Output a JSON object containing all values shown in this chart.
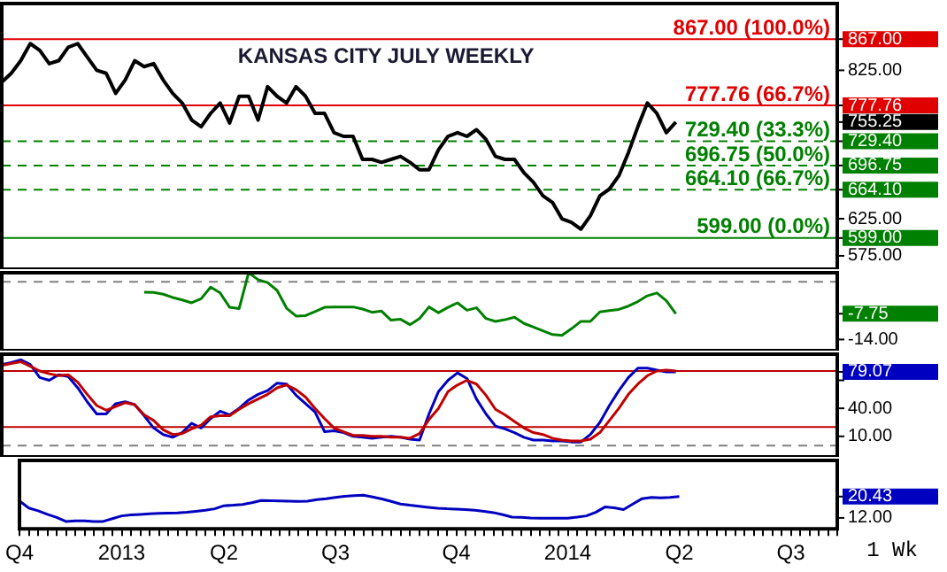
{
  "chart_data": [
    {
      "type": "line",
      "title": "KANSAS CITY JULY WEEKLY",
      "tick_labels": "y",
      "categories": [
        null,
        null,
        null,
        null,
        null,
        null,
        null,
        null,
        null,
        null,
        null,
        null,
        null,
        null,
        null,
        null,
        null,
        null,
        null,
        null,
        null,
        null,
        null,
        null,
        null,
        null,
        null,
        null,
        null,
        null,
        null,
        null,
        null,
        null,
        null,
        null,
        null,
        null,
        null,
        null,
        null,
        null,
        null,
        null,
        null,
        null,
        null,
        null,
        null,
        null,
        null,
        null,
        null,
        null,
        null,
        null,
        null,
        null,
        null,
        null,
        null,
        null,
        null,
        null,
        null,
        null,
        null,
        null,
        null,
        null,
        null,
        null,
        null,
        null,
        null,
        null,
        null,
        null,
        null,
        null,
        null,
        null,
        null,
        null,
        null,
        null,
        null,
        null,
        null
      ],
      "series": [
        {
          "color": "#000000",
          "values": [
            809,
            821,
            838,
            861,
            852,
            834,
            838,
            856,
            861,
            843,
            825,
            821,
            794,
            812,
            838,
            830,
            834,
            812,
            794,
            781,
            758,
            749,
            767,
            781,
            754,
            790,
            790,
            758,
            803,
            790,
            781,
            803,
            790,
            767,
            767,
            741,
            736,
            736,
            705,
            705,
            701,
            705,
            709,
            701,
            691,
            691,
            718,
            736,
            741,
            736,
            745,
            732,
            709,
            705,
            705,
            687,
            674,
            656,
            647,
            625,
            620,
            611,
            629,
            656,
            665,
            683,
            714,
            749,
            781,
            767,
            741,
            755.25,
            null,
            null,
            null,
            null,
            null,
            null,
            null,
            null,
            null,
            null,
            null,
            null,
            null,
            null,
            null,
            null,
            null
          ]
        }
      ],
      "ylim": [
        557,
        915
      ],
      "yticks": [
        {
          "value": 575,
          "label": "575.00"
        },
        {
          "value": 599,
          "label": "599.00"
        },
        {
          "value": 625,
          "label": "625.00"
        },
        {
          "value": 664.1,
          "label": "664.10"
        },
        {
          "value": 696.75,
          "label": "696.75"
        },
        {
          "value": 729.4,
          "label": "729.40"
        },
        {
          "value": 755.25,
          "label": "755.25"
        },
        {
          "value": 777.76,
          "label": "777.76"
        },
        {
          "value": 825,
          "label": "825.00"
        },
        {
          "value": 867,
          "label": "867.00"
        }
      ],
      "ref_lines": [
        {
          "axis": "y",
          "value": 867,
          "label": "867.00 (100.0%)",
          "color": "#e00000"
        },
        {
          "axis": "y",
          "value": 777.76,
          "label": "777.76 (66.7%)",
          "color": "#e00000"
        },
        {
          "axis": "y",
          "value": 729.4,
          "label": "729.40 (33.3%)",
          "color": "#008000",
          "line_style": "dashed"
        },
        {
          "axis": "y",
          "value": 696.75,
          "label": "696.75 (50.0%)",
          "color": "#008000",
          "line_style": "dashed"
        },
        {
          "axis": "y",
          "value": 664.1,
          "label": "664.10 (66.7%)",
          "color": "#008000",
          "line_style": "dashed"
        },
        {
          "axis": "y",
          "value": 599,
          "label": "599.00 (0.0%)",
          "color": "#008000"
        }
      ]
    },
    {
      "type": "line",
      "tick_labels": "y",
      "categories": [
        null,
        null,
        null,
        null,
        null,
        null,
        null,
        null,
        null,
        null,
        null,
        null,
        null,
        null,
        null,
        null,
        null,
        null,
        null,
        null,
        null,
        null,
        null,
        null,
        null,
        null,
        null,
        null,
        null,
        null,
        null,
        null,
        null,
        null,
        null,
        null,
        null,
        null,
        null,
        null,
        null,
        null,
        null,
        null,
        null,
        null,
        null,
        null,
        null,
        null,
        null,
        null,
        null,
        null,
        null,
        null,
        null,
        null,
        null,
        null,
        null,
        null,
        null,
        null,
        null,
        null,
        null,
        null,
        null,
        null,
        null,
        null,
        null,
        null,
        null,
        null,
        null,
        null,
        null,
        null,
        null,
        null,
        null,
        null,
        null,
        null,
        null,
        null,
        null
      ],
      "series": [
        {
          "color": "#008000",
          "values": [
            null,
            null,
            null,
            null,
            null,
            null,
            null,
            null,
            null,
            null,
            null,
            null,
            null,
            null,
            null,
            -2.5,
            -2.6,
            -3.0,
            -3.8,
            -4.4,
            -5.1,
            -4.1,
            -1.3,
            -2.7,
            -6.2,
            -6.5,
            2.2,
            0.5,
            -0.2,
            -2.1,
            -6.4,
            -8.3,
            -8.2,
            -7.2,
            -6.2,
            -6.1,
            -6.1,
            -6.1,
            -6.6,
            -7.4,
            -7.1,
            -9.3,
            -9.1,
            -10.4,
            -8.9,
            -6.1,
            -7.5,
            -6.2,
            -5.1,
            -6.9,
            -6.3,
            -8.9,
            -9.6,
            -9.2,
            -8.6,
            -10.1,
            -11.0,
            -11.9,
            -12.8,
            -13.0,
            -11.4,
            -9.6,
            -9.6,
            -7.3,
            -7.0,
            -6.7,
            -5.9,
            -4.8,
            -3.4,
            -2.7,
            -4.6,
            -7.75,
            null,
            null,
            null,
            null,
            null,
            null,
            null,
            null,
            null,
            null,
            null,
            null,
            null,
            null,
            null,
            null,
            null
          ]
        }
      ],
      "ylim": [
        -16.7,
        2.2
      ],
      "yticks": [
        {
          "value": -14,
          "label": "-14.00"
        },
        {
          "value": -7.75,
          "label": "-7.75"
        }
      ],
      "ref_lines": [
        {
          "axis": "y",
          "value": 0,
          "color": "#808080",
          "line_style": "dashed"
        }
      ]
    },
    {
      "type": "line",
      "tick_labels": "y",
      "categories": [
        null,
        null,
        null,
        null,
        null,
        null,
        null,
        null,
        null,
        null,
        null,
        null,
        null,
        null,
        null,
        null,
        null,
        null,
        null,
        null,
        null,
        null,
        null,
        null,
        null,
        null,
        null,
        null,
        null,
        null,
        null,
        null,
        null,
        null,
        null,
        null,
        null,
        null,
        null,
        null,
        null,
        null,
        null,
        null,
        null,
        null,
        null,
        null,
        null,
        null,
        null,
        null,
        null,
        null,
        null,
        null,
        null,
        null,
        null,
        null,
        null,
        null,
        null,
        null,
        null,
        null,
        null,
        null,
        null,
        null,
        null,
        null,
        null,
        null,
        null,
        null,
        null,
        null,
        null,
        null,
        null,
        null,
        null,
        null,
        null,
        null,
        null,
        null,
        null
      ],
      "series": [
        {
          "color": "#c00000",
          "values": [
            86,
            88,
            90,
            85,
            80,
            77,
            75,
            76,
            68,
            55,
            43,
            38,
            42,
            46,
            44,
            33,
            27,
            17,
            12,
            13,
            18,
            22,
            31,
            32,
            32,
            39,
            45,
            50,
            55,
            62,
            65,
            60,
            52,
            40,
            29,
            19,
            15,
            11,
            11,
            10,
            10,
            9,
            9,
            8,
            13,
            28,
            40,
            58,
            65,
            70,
            66,
            54,
            39,
            33,
            26,
            19,
            14,
            12,
            8,
            6,
            5,
            5,
            7,
            14,
            27,
            40,
            55,
            66,
            75,
            80,
            81,
            80,
            null,
            null,
            null,
            null,
            null,
            null,
            null,
            null,
            null,
            null,
            null,
            null,
            null,
            null,
            null,
            null,
            null
          ]
        },
        {
          "color": "#0000c0",
          "values": [
            87,
            89,
            92,
            87,
            73,
            70,
            76,
            74,
            62,
            47,
            34,
            34,
            45,
            47,
            44,
            32,
            19,
            12,
            9,
            14,
            24,
            19,
            29,
            37,
            33,
            40,
            49,
            55,
            59,
            67,
            66,
            54,
            45,
            36,
            15,
            16,
            14,
            10,
            9,
            8,
            9,
            10,
            9,
            7,
            6,
            34,
            58,
            70,
            78,
            72,
            50,
            34,
            21,
            18,
            14,
            9,
            6,
            6,
            5,
            5,
            4,
            4,
            12,
            25,
            43,
            59,
            73,
            83,
            83,
            81,
            79,
            79.07,
            null,
            null,
            null,
            null,
            null,
            null,
            null,
            null,
            null,
            null,
            null,
            null,
            null,
            null,
            null,
            null,
            null
          ]
        }
      ],
      "ylim": [
        -12,
        98
      ],
      "yticks": [
        {
          "value": 10,
          "label": "10.00"
        },
        {
          "value": 40,
          "label": "40.00"
        },
        {
          "value": 70,
          "label": null
        },
        {
          "value": 79.07,
          "label": "79.07"
        }
      ],
      "ref_lines": [
        {
          "axis": "y",
          "value": 80,
          "color": "#c00000"
        },
        {
          "axis": "y",
          "value": 20,
          "color": "#c00000"
        },
        {
          "axis": "y",
          "value": 0,
          "color": "#808080",
          "line_style": "dashed"
        }
      ]
    },
    {
      "type": "line",
      "annotations": [
        "1 Wk"
      ],
      "categories": [
        "Q4",
        null,
        null,
        null,
        null,
        null,
        null,
        null,
        null,
        null,
        null,
        "2013",
        null,
        null,
        null,
        null,
        null,
        null,
        null,
        null,
        null,
        null,
        "Q2",
        null,
        null,
        null,
        null,
        null,
        null,
        null,
        null,
        null,
        null,
        null,
        "Q3",
        null,
        null,
        null,
        null,
        null,
        null,
        null,
        null,
        null,
        null,
        null,
        null,
        "Q4",
        null,
        null,
        null,
        null,
        null,
        null,
        null,
        null,
        null,
        null,
        null,
        "2014",
        null,
        null,
        null,
        null,
        null,
        null,
        null,
        null,
        null,
        null,
        null,
        "Q2",
        null,
        null,
        null,
        null,
        null,
        null,
        null,
        null,
        null,
        null,
        null,
        "Q3",
        null,
        null,
        null,
        null,
        null
      ],
      "series": [
        {
          "color": "#0000c0",
          "values": [
            18.7,
            15.9,
            14.8,
            13.4,
            12.2,
            10.6,
            10.8,
            10.8,
            10.6,
            10.6,
            11.7,
            12.8,
            13.2,
            13.4,
            13.6,
            13.8,
            13.9,
            14.0,
            14.2,
            14.6,
            15.0,
            15.6,
            16.8,
            17.0,
            17.3,
            18.0,
            18.9,
            18.8,
            18.7,
            18.6,
            18.5,
            18.6,
            19.2,
            19.6,
            20.1,
            20.5,
            20.8,
            21.0,
            20.3,
            19.5,
            18.5,
            17.5,
            17.0,
            16.6,
            16.2,
            15.8,
            15.6,
            15.5,
            15.3,
            15.0,
            14.6,
            14.1,
            13.3,
            12.3,
            12.2,
            12.0,
            11.9,
            11.9,
            11.9,
            11.9,
            12.3,
            12.8,
            14.2,
            16.3,
            16.0,
            15.3,
            17.5,
            19.6,
            20.1,
            19.9,
            20.1,
            20.43,
            null,
            null,
            null,
            null,
            null,
            null,
            null,
            null,
            null,
            null,
            null,
            null,
            null,
            null,
            null,
            null,
            null
          ]
        }
      ],
      "ylim": [
        7.7,
        34.7
      ],
      "yticks": [
        {
          "value": 12,
          "label": "12.00"
        },
        {
          "value": 20.43,
          "label": "20.43"
        }
      ]
    }
  ]
}
